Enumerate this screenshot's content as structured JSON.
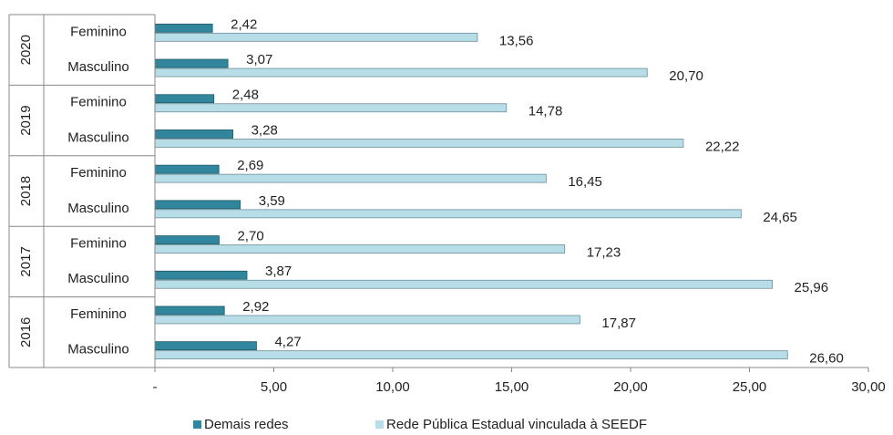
{
  "chart_data": {
    "type": "hbar",
    "groups": [
      "2020",
      "2019",
      "2018",
      "2017",
      "2016"
    ],
    "categories": [
      "Feminino",
      "Masculino",
      "Feminino",
      "Masculino",
      "Feminino",
      "Masculino",
      "Feminino",
      "Masculino",
      "Feminino",
      "Masculino"
    ],
    "series": [
      {
        "name": "Demais redes",
        "color": "#31859c",
        "values": [
          2.42,
          3.07,
          2.48,
          3.28,
          2.69,
          3.59,
          2.7,
          3.87,
          2.92,
          4.27
        ],
        "value_labels": [
          "2,42",
          "3,07",
          "2,48",
          "3,28",
          "2,69",
          "3,59",
          "2,70",
          "3,87",
          "2,92",
          "4,27"
        ]
      },
      {
        "name": "Rede Pública Estadual vinculada à SEEDF",
        "color": "#b7dde8",
        "values": [
          13.56,
          20.7,
          14.78,
          22.22,
          16.45,
          24.65,
          17.23,
          25.96,
          17.87,
          26.6
        ],
        "value_labels": [
          "13,56",
          "20,70",
          "14,78",
          "22,22",
          "16,45",
          "24,65",
          "17,23",
          "25,96",
          "17,87",
          "26,60"
        ]
      }
    ],
    "xlim": [
      0,
      30
    ],
    "xticks": [
      {
        "value": 0,
        "label": "-"
      },
      {
        "value": 5,
        "label": "5,00"
      },
      {
        "value": 10,
        "label": "10,00"
      },
      {
        "value": 15,
        "label": "15,00"
      },
      {
        "value": 20,
        "label": "20,00"
      },
      {
        "value": 25,
        "label": "25,00"
      },
      {
        "value": 30,
        "label": "30,00"
      }
    ],
    "legend": "bottom"
  }
}
